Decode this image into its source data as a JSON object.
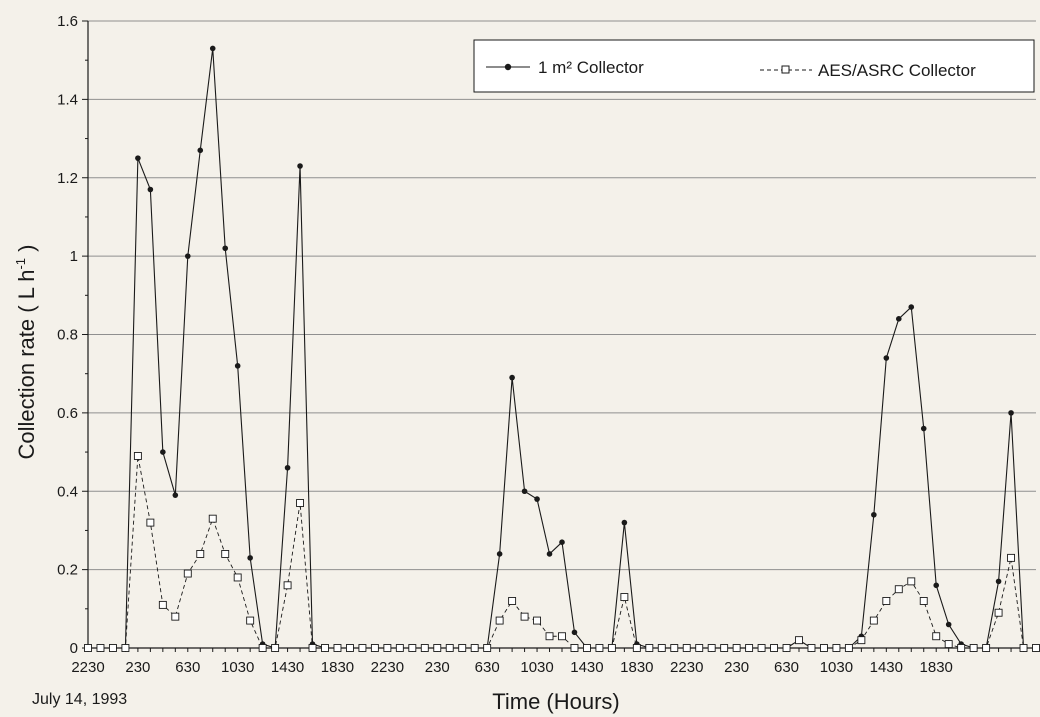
{
  "chart_data": {
    "type": "line",
    "title": "",
    "xlabel": "Time (Hours)",
    "ylabel": "Collection rate ( L h -1 )",
    "ylabel_parts": {
      "main": "Collection rate ( L h",
      "sup": "-1",
      "close": " )"
    },
    "date_annotation": "July 14, 1993",
    "ylim": [
      0,
      1.6
    ],
    "yticks": [
      "0",
      "0.2",
      "0.4",
      "0.6",
      "0.8",
      "1",
      "1.2",
      "1.4",
      "1.6"
    ],
    "x_tick_labels": [
      "2230",
      "230",
      "630",
      "1030",
      "1430",
      "1830",
      "2230",
      "230",
      "630",
      "1030",
      "1430",
      "1830",
      "2230",
      "230",
      "630",
      "1030",
      "1430",
      "1830"
    ],
    "x_interval_hours": 1,
    "x_tick_step_hours": 4,
    "grid": true,
    "legend_position": "top-right",
    "colors": {
      "line": "#1a1a1a",
      "grid": "#8f8f8f",
      "background": "#f4f1ea",
      "marker_fill_open": "#ffffff"
    },
    "series": [
      {
        "name": "1 m² Collector",
        "marker": "filled-circle",
        "line_style": "solid",
        "values": [
          0,
          0,
          0,
          0,
          1.25,
          1.17,
          0.5,
          0.39,
          1.0,
          1.27,
          1.53,
          1.02,
          0.72,
          0.23,
          0.01,
          0,
          0.46,
          1.23,
          0.01,
          0,
          0,
          0,
          0,
          0,
          0,
          0,
          0,
          0,
          0,
          0,
          0,
          0,
          0,
          0.24,
          0.69,
          0.4,
          0.38,
          0.24,
          0.27,
          0.04,
          0,
          0,
          0,
          0.32,
          0.01,
          0,
          0,
          0,
          0,
          0,
          0,
          0,
          0,
          0,
          0,
          0,
          0,
          0.02,
          0,
          0,
          0,
          0,
          0.03,
          0.34,
          0.74,
          0.84,
          0.87,
          0.56,
          0.16,
          0.06,
          0.01,
          0,
          0,
          0.17,
          0.6,
          0,
          0
        ]
      },
      {
        "name": "AES/ASRC Collector",
        "marker": "open-square",
        "line_style": "dashed",
        "values": [
          0,
          0,
          0,
          0,
          0.49,
          0.32,
          0.11,
          0.08,
          0.19,
          0.24,
          0.33,
          0.24,
          0.18,
          0.07,
          0,
          0,
          0.16,
          0.37,
          0,
          0,
          0,
          0,
          0,
          0,
          0,
          0,
          0,
          0,
          0,
          0,
          0,
          0,
          0,
          0.07,
          0.12,
          0.08,
          0.07,
          0.03,
          0.03,
          0,
          0,
          0,
          0,
          0.13,
          0,
          0,
          0,
          0,
          0,
          0,
          0,
          0,
          0,
          0,
          0,
          0,
          0,
          0.02,
          0,
          0,
          0,
          0,
          0.02,
          0.07,
          0.12,
          0.15,
          0.17,
          0.12,
          0.03,
          0.01,
          0,
          0,
          0,
          0.09,
          0.23,
          0,
          0
        ]
      }
    ]
  }
}
